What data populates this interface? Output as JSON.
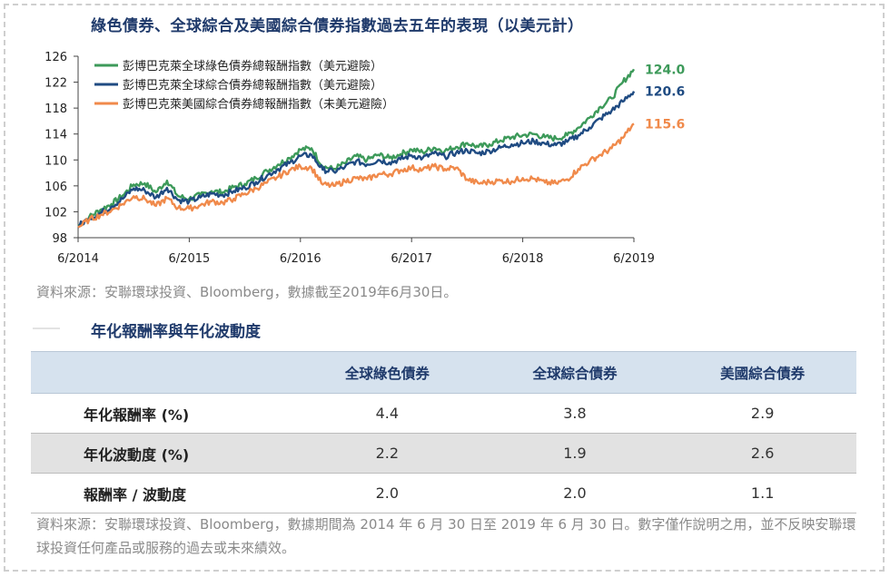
{
  "chart_data": {
    "type": "line",
    "title": "綠色債券、全球綜合及美國綜合債券指數過去五年的表現（以美元計）",
    "x_ticks": [
      "6/2014",
      "6/2015",
      "6/2016",
      "6/2017",
      "6/2018",
      "6/2019"
    ],
    "x_start": "2014-06",
    "x_end": "2019-06",
    "ylim": [
      98,
      126
    ],
    "y_ticks": [
      98,
      102,
      106,
      110,
      114,
      118,
      122,
      126
    ],
    "grid": false,
    "legend": "top-left",
    "series": [
      {
        "name": "彭博巴克萊全球綠色債券總報酬指數（美元避險）",
        "color": "#3d9a5a",
        "end_label": "124.0",
        "x": [
          2014.5,
          2014.6,
          2014.7,
          2014.8,
          2014.9,
          2015.0,
          2015.1,
          2015.2,
          2015.3,
          2015.4,
          2015.5,
          2015.6,
          2015.7,
          2015.8,
          2015.9,
          2016.0,
          2016.1,
          2016.2,
          2016.3,
          2016.4,
          2016.5,
          2016.6,
          2016.7,
          2016.8,
          2016.9,
          2017.0,
          2017.1,
          2017.2,
          2017.3,
          2017.4,
          2017.5,
          2017.6,
          2017.7,
          2017.8,
          2017.9,
          2018.0,
          2018.1,
          2018.2,
          2018.3,
          2018.4,
          2018.5,
          2018.6,
          2018.7,
          2018.8,
          2018.9,
          2019.0,
          2019.1,
          2019.2,
          2019.3,
          2019.4,
          2019.5
        ],
        "values": [
          99.8,
          101.2,
          102.3,
          103.2,
          104.5,
          106.2,
          106.4,
          105.0,
          106.8,
          104.4,
          104.0,
          104.6,
          105.2,
          105.0,
          105.8,
          106.3,
          107.2,
          108.3,
          109.3,
          110.3,
          111.6,
          111.8,
          109.0,
          108.6,
          109.5,
          110.6,
          110.0,
          110.8,
          110.3,
          110.9,
          111.6,
          111.2,
          111.9,
          111.4,
          112.0,
          112.6,
          112.0,
          112.4,
          113.0,
          113.5,
          113.8,
          114.0,
          113.5,
          113.3,
          113.8,
          115.0,
          116.5,
          118.2,
          119.5,
          122.0,
          124.0
        ]
      },
      {
        "name": "彭博巴克萊全球綜合債券總報酬指數（美元避險）",
        "color": "#1f4b82",
        "end_label": "120.6",
        "x": [
          2014.5,
          2014.6,
          2014.7,
          2014.8,
          2014.9,
          2015.0,
          2015.1,
          2015.2,
          2015.3,
          2015.4,
          2015.5,
          2015.6,
          2015.7,
          2015.8,
          2015.9,
          2016.0,
          2016.1,
          2016.2,
          2016.3,
          2016.4,
          2016.5,
          2016.6,
          2016.7,
          2016.8,
          2016.9,
          2017.0,
          2017.1,
          2017.2,
          2017.3,
          2017.4,
          2017.5,
          2017.6,
          2017.7,
          2017.8,
          2017.9,
          2018.0,
          2018.1,
          2018.2,
          2018.3,
          2018.4,
          2018.5,
          2018.6,
          2018.7,
          2018.8,
          2018.9,
          2019.0,
          2019.1,
          2019.2,
          2019.3,
          2019.4,
          2019.5
        ],
        "values": [
          99.8,
          101.0,
          101.8,
          102.8,
          104.0,
          105.6,
          105.3,
          104.2,
          105.7,
          103.8,
          103.6,
          104.2,
          104.8,
          104.6,
          105.2,
          105.7,
          106.6,
          107.6,
          108.6,
          109.5,
          110.6,
          110.8,
          108.5,
          108.2,
          108.9,
          109.8,
          109.3,
          110.0,
          109.6,
          110.1,
          110.7,
          110.3,
          111.0,
          110.5,
          111.1,
          111.5,
          111.0,
          111.4,
          111.9,
          112.4,
          112.6,
          112.9,
          112.5,
          112.3,
          112.8,
          113.8,
          115.0,
          116.4,
          117.6,
          119.0,
          120.6
        ]
      },
      {
        "name": "彭博巴克萊美國綜合債券總報酬指數（未美元避險）",
        "color": "#f08a4b",
        "end_label": "115.6",
        "x": [
          2014.5,
          2014.6,
          2014.7,
          2014.8,
          2014.9,
          2015.0,
          2015.1,
          2015.2,
          2015.3,
          2015.4,
          2015.5,
          2015.6,
          2015.7,
          2015.8,
          2015.9,
          2016.0,
          2016.1,
          2016.2,
          2016.3,
          2016.4,
          2016.5,
          2016.6,
          2016.7,
          2016.8,
          2016.9,
          2017.0,
          2017.1,
          2017.2,
          2017.3,
          2017.4,
          2017.5,
          2017.6,
          2017.7,
          2017.8,
          2017.9,
          2018.0,
          2018.1,
          2018.2,
          2018.3,
          2018.4,
          2018.5,
          2018.6,
          2018.7,
          2018.8,
          2018.9,
          2019.0,
          2019.1,
          2019.2,
          2019.3,
          2019.4,
          2019.5
        ],
        "values": [
          99.6,
          100.8,
          101.5,
          102.2,
          103.2,
          104.4,
          104.0,
          102.9,
          104.1,
          102.6,
          102.5,
          103.0,
          103.6,
          103.4,
          104.0,
          104.8,
          105.6,
          106.5,
          107.4,
          108.4,
          109.0,
          108.8,
          106.2,
          106.0,
          106.7,
          107.2,
          107.0,
          107.8,
          107.8,
          108.4,
          108.8,
          108.5,
          109.0,
          108.6,
          108.8,
          107.0,
          106.4,
          106.6,
          106.8,
          106.7,
          107.2,
          107.1,
          106.5,
          106.4,
          107.0,
          108.6,
          109.8,
          110.8,
          111.8,
          113.4,
          115.6
        ]
      }
    ]
  },
  "chart_source": "資料來源：安聯環球投資、Bloomberg，數據截至2019年6月30日。",
  "table": {
    "title": "年化報酬率與年化波動度",
    "headers": [
      "",
      "全球綠色債券",
      "全球綜合債券",
      "美國綜合債券"
    ],
    "rows": [
      {
        "label": "年化報酬率 (%)",
        "values": [
          "4.4",
          "3.8",
          "2.9"
        ]
      },
      {
        "label": "年化波動度 (%)",
        "values": [
          "2.2",
          "1.9",
          "2.6"
        ]
      },
      {
        "label": "報酬率 / 波動度",
        "values": [
          "2.0",
          "2.0",
          "1.1"
        ]
      }
    ]
  },
  "table_source": "資料來源：安聯環球投資、Bloomberg，數據期間為 2014 年 6 月 30 日至 2019 年 6 月 30 日。數字僅作說明之用，並不反映安聯環球投資任何產品或服務的過去或未來績效。"
}
